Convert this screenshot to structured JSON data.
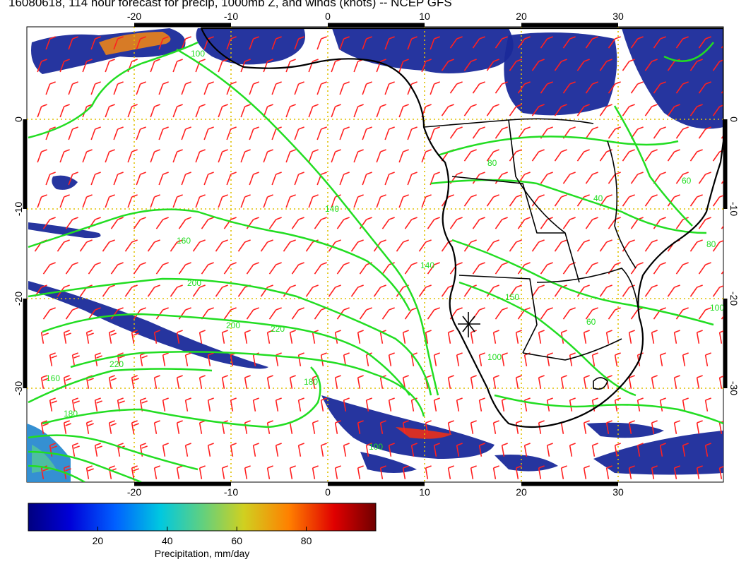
{
  "title": "16080618, 114 hour forecast for precip, 1000mb Z, and winds (knots) -- NCEP GFS",
  "map": {
    "lon_ticks": [
      "-20",
      "-10",
      "0",
      "10",
      "20",
      "30"
    ],
    "lat_ticks": [
      "0",
      "-10",
      "-20",
      "-30"
    ],
    "contour_labels": [
      "100",
      "140",
      "160",
      "180",
      "200",
      "200",
      "220",
      "220",
      "180",
      "160",
      "140",
      "150",
      "100",
      "100",
      "80",
      "80",
      "60",
      "40",
      "60",
      "100"
    ],
    "colors": {
      "contour": "#22dd22",
      "wind_barb": "#ff2020",
      "coastline": "#000000",
      "grid": "#e0c000",
      "precip_low": "#1a2a9a",
      "precip_high": "#d81818"
    }
  },
  "colorbar": {
    "label": "Precipitation, mm/day",
    "ticks": [
      "20",
      "40",
      "60",
      "80"
    ],
    "range": [
      0,
      100
    ]
  }
}
